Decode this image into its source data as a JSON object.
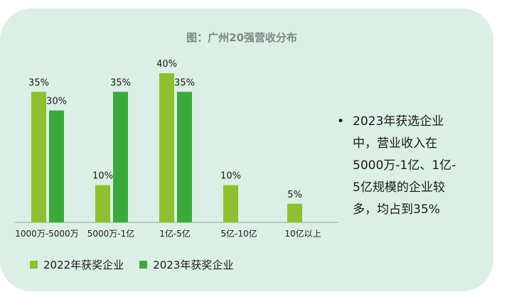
{
  "title": "图：广州20强营收分布",
  "colors": {
    "series2022": "#8dc02e",
    "series2023": "#3aab3a",
    "background": "#dcefe5"
  },
  "note": {
    "bullet": "•",
    "lines": [
      "2023年获选企业",
      "中，营业收入在",
      "5000万-1亿、1亿-",
      "5亿规模的企业较",
      "多，均占到35%"
    ]
  },
  "chart_data": {
    "type": "bar",
    "title": "图：广州20强营收分布",
    "categories": [
      "1000万-5000万",
      "5000万-1亿",
      "1亿-5亿",
      "5亿-10亿",
      "10亿以上"
    ],
    "series": [
      {
        "name": "2022年获奖企业",
        "values": [
          35,
          10,
          40,
          10,
          5
        ],
        "labels": [
          "35%",
          "10%",
          "40%",
          "10%",
          "5%"
        ]
      },
      {
        "name": "2023年获奖企业",
        "values": [
          30,
          35,
          35,
          null,
          null
        ],
        "labels": [
          "30%",
          "35%",
          "35%",
          "",
          ""
        ]
      }
    ],
    "ylim": [
      0,
      40
    ],
    "grid": false,
    "legend": "bottom-left"
  }
}
